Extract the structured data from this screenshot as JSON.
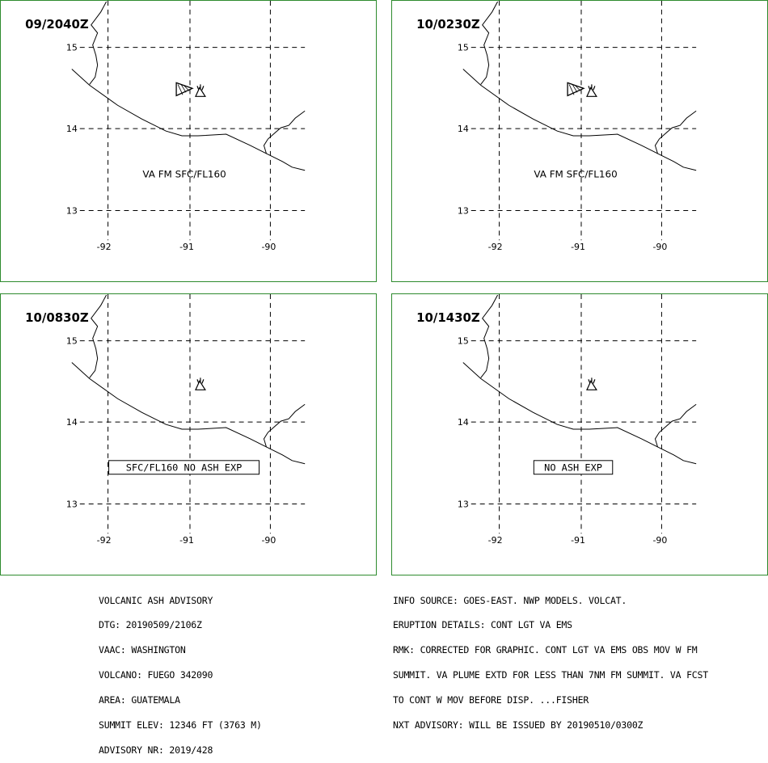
{
  "panels": [
    {
      "time": "09/2040Z",
      "label": "VA FM SFC/FL160",
      "boxed": false,
      "polygon": true
    },
    {
      "time": "10/0230Z",
      "label": "VA FM SFC/FL160",
      "boxed": false,
      "polygon": true
    },
    {
      "time": "10/0830Z",
      "label": "SFC/FL160 NO ASH EXP",
      "boxed": true,
      "polygon": false
    },
    {
      "time": "10/1430Z",
      "label": "NO ASH EXP",
      "boxed": true,
      "polygon": false
    }
  ],
  "map": {
    "lat_labels": [
      "15",
      "14",
      "13"
    ],
    "lon_labels": [
      "-92",
      "-91",
      "-90"
    ]
  },
  "advisory_left": [
    "VOLCANIC ASH ADVISORY",
    "DTG: 20190509/2106Z",
    "VAAC: WASHINGTON",
    "VOLCANO: FUEGO 342090",
    "AREA: GUATEMALA",
    "SUMMIT ELEV: 12346 FT (3763 M)",
    "ADVISORY NR: 2019/428"
  ],
  "advisory_right": [
    "INFO SOURCE: GOES-EAST. NWP MODELS. VOLCAT.",
    "ERUPTION DETAILS: CONT LGT VA EMS",
    "RMK: CORRECTED FOR GRAPHIC. CONT LGT VA EMS OBS MOV W FM",
    "SUMMIT. VA PLUME EXTD FOR LESS THAN 7NM FM SUMMIT. VA FCST",
    "TO CONT W MOV BEFORE DISP. ...FISHER",
    "NXT ADVISORY: WILL BE ISSUED BY 20190510/0300Z"
  ],
  "colors": {
    "panel_border": "#2e8b2e",
    "lines": "#000000"
  }
}
